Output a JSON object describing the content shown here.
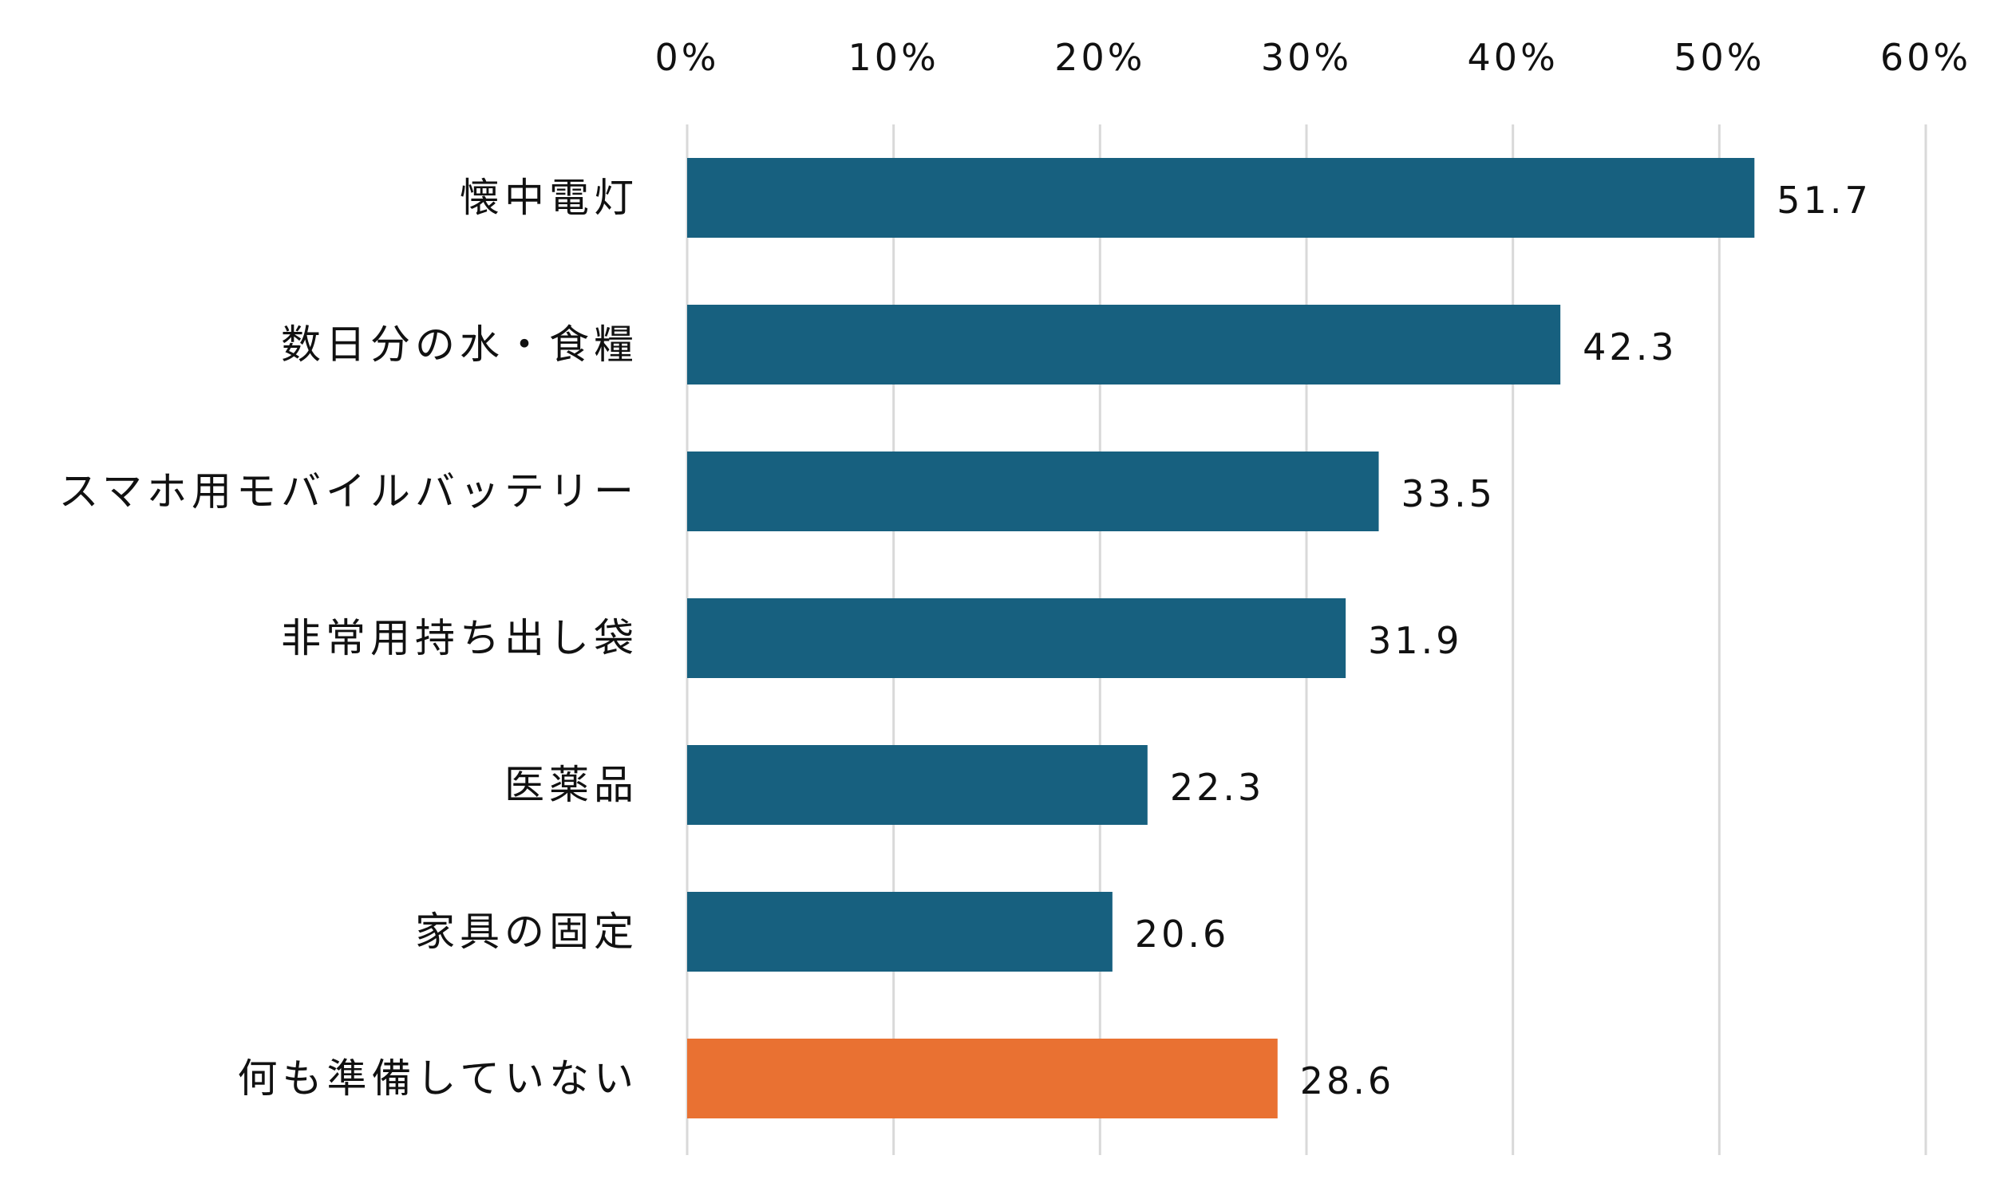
{
  "chart_data": {
    "type": "bar",
    "orientation": "horizontal",
    "title": "",
    "xlabel": "",
    "ylabel": "",
    "xlim": [
      0,
      60
    ],
    "x_ticks": [
      0,
      10,
      20,
      30,
      40,
      50,
      60
    ],
    "x_tick_labels": [
      "0%",
      "10%",
      "20%",
      "30%",
      "40%",
      "50%",
      "60%"
    ],
    "x_axis_position": "top",
    "grid": true,
    "legend": "none",
    "categories": [
      "懐中電灯",
      "数日分の水・食糧",
      "スマホ用モバイルバッテリー",
      "非常用持ち出し袋",
      "医薬品",
      "家具の固定",
      "何も準備していない"
    ],
    "values": [
      51.7,
      42.3,
      33.5,
      31.9,
      22.3,
      20.6,
      28.6
    ],
    "data_labels": [
      "51.7",
      "42.3",
      "33.5",
      "31.9",
      "22.3",
      "20.6",
      "28.6"
    ],
    "bar_colors": [
      "#17607f",
      "#17607f",
      "#17607f",
      "#17607f",
      "#17607f",
      "#17607f",
      "#e97132"
    ]
  }
}
